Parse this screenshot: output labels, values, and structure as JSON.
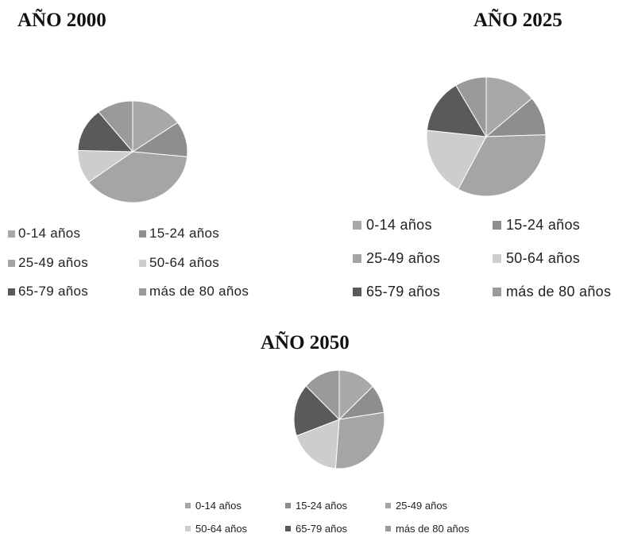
{
  "chart_data": [
    {
      "type": "pie",
      "title": "AÑO 2000",
      "categories": [
        "0-14 años",
        "15-24 años",
        "25-49 años",
        "50-64 años",
        "65-79 años",
        "más de 80 años"
      ],
      "values": [
        15.3,
        11.3,
        38.2,
        10.6,
        13.9,
        10.7
      ],
      "colors": [
        "#a8a8a8",
        "#8e8e8e",
        "#a5a5a5",
        "#cdcdcd",
        "#5a5a5a",
        "#9a9a9a"
      ],
      "legend": "bottom"
    },
    {
      "type": "pie",
      "title": "AÑO 2025",
      "categories": [
        "0-14 años",
        "15-24 años",
        "25-49 años",
        "50-64 años",
        "65-79 años",
        "más de 80 años"
      ],
      "values": [
        13.9,
        10.6,
        33.3,
        18.9,
        14.8,
        8.5
      ],
      "colors": [
        "#a8a8a8",
        "#8e8e8e",
        "#a5a5a5",
        "#cdcdcd",
        "#5a5a5a",
        "#9a9a9a"
      ],
      "legend": "bottom"
    },
    {
      "type": "pie",
      "title": "AÑO 2050",
      "categories": [
        "0-14 años",
        "15-24 años",
        "25-49 años",
        "50-64 años",
        "65-79 años",
        "más de 80 años"
      ],
      "values": [
        13.3,
        9.4,
        28.6,
        18.3,
        17.3,
        13.1
      ],
      "colors": [
        "#a8a8a8",
        "#8e8e8e",
        "#a5a5a5",
        "#cdcdcd",
        "#5a5a5a",
        "#9a9a9a"
      ],
      "legend": "bottom"
    }
  ]
}
